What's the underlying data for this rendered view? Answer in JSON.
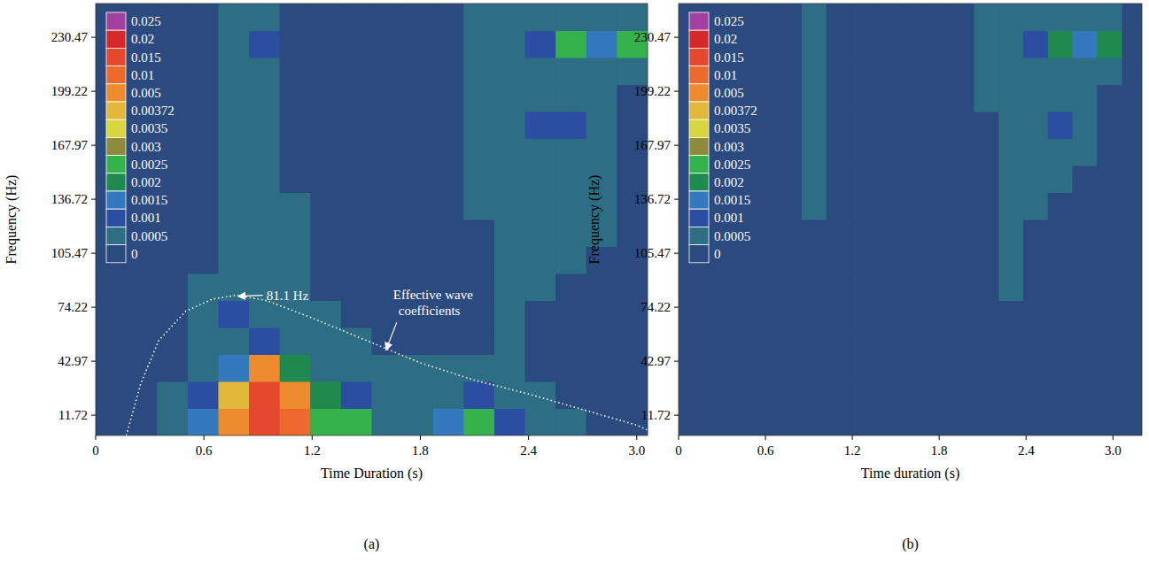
{
  "chart_data": [
    {
      "type": "heatmap",
      "panel": "(a)",
      "x_label": "Time Duration (s)",
      "y_label": "Frequency (Hz)",
      "xlim": [
        0,
        3.06
      ],
      "ylim": [
        0,
        250
      ],
      "xticks": [
        0,
        0.6,
        1.2,
        1.8,
        2.4,
        {
          "value": 3,
          "label": "3.0"
        }
      ],
      "yticks": [
        11.72,
        42.97,
        74.22,
        105.47,
        136.72,
        167.97,
        199.22,
        230.47
      ],
      "x": [
        0,
        0.17,
        0.34,
        0.51,
        0.68,
        0.85,
        1.02,
        1.19,
        1.36,
        1.53,
        1.7,
        1.87,
        2.04,
        2.21,
        2.38,
        2.55,
        2.72,
        2.89,
        3.06
      ],
      "y": [
        0,
        15.625,
        31.25,
        46.875,
        62.5,
        78.125,
        93.75,
        109.375,
        125,
        140.625,
        156.25,
        171.875,
        187.5,
        203.125,
        218.75,
        234.375,
        250
      ],
      "cells": [
        [
          0.0003,
          0.0004,
          0.0006,
          0.0015,
          0.006,
          0.018,
          0.012,
          0.0028,
          0.0026,
          0.0008,
          0.0008,
          0.0015,
          0.0025,
          0.001,
          0.0006,
          0.0005,
          0.0004,
          0.0003
        ],
        [
          0.0002,
          0.0003,
          0.0005,
          0.001,
          0.004,
          0.015,
          0.008,
          0.002,
          0.0012,
          0.0006,
          0.0006,
          0.0008,
          0.0012,
          0.0007,
          0.0005,
          0.0004,
          0.0003,
          0.0002
        ],
        [
          0.0002,
          0.0002,
          0.0004,
          0.0007,
          0.0015,
          0.006,
          0.002,
          0.0008,
          0.0006,
          0.0006,
          0.0005,
          0.0005,
          0.0006,
          0.0006,
          0.0004,
          0.0003,
          0.0002,
          0.0002
        ],
        [
          0.0002,
          0.0002,
          0.0003,
          0.0006,
          0.0008,
          0.0012,
          0.0008,
          0.0006,
          0.0006,
          0.0004,
          0.0003,
          0.0003,
          0.0004,
          0.0006,
          0.0003,
          0.0002,
          0.0002,
          0.0002
        ],
        [
          0.0002,
          0.0002,
          0.0003,
          0.0007,
          0.0012,
          0.0007,
          0.0007,
          0.0005,
          0.0003,
          0.0002,
          0.0002,
          0.0002,
          0.0003,
          0.0006,
          0.0003,
          0.0002,
          0.0002,
          0.0002
        ],
        [
          0.0002,
          0.0002,
          0.0002,
          0.0005,
          0.0007,
          0.0006,
          0.0006,
          0.0003,
          0.0002,
          0.0002,
          0.0002,
          0.0002,
          0.0003,
          0.0006,
          0.0006,
          0.0004,
          0.0003,
          0.0002
        ],
        [
          0.0002,
          0.0002,
          0.0002,
          0.0003,
          0.0006,
          0.0006,
          0.0005,
          0.0003,
          0.0002,
          0.0002,
          0.0002,
          0.0002,
          0.0003,
          0.0007,
          0.0006,
          0.0006,
          0.0004,
          0.0002
        ],
        [
          0.0002,
          0.0002,
          0.0002,
          0.0003,
          0.0006,
          0.0005,
          0.0006,
          0.0003,
          0.0002,
          0.0002,
          0.0002,
          0.0002,
          0.0004,
          0.0007,
          0.0006,
          0.0006,
          0.0005,
          0.0002
        ],
        [
          0.0002,
          0.0002,
          0.0002,
          0.0003,
          0.0005,
          0.0006,
          0.0005,
          0.0002,
          0.0002,
          0.0002,
          0.0002,
          0.0002,
          0.0005,
          0.0008,
          0.0007,
          0.0006,
          0.0006,
          0.0002
        ],
        [
          0.0002,
          0.0002,
          0.0002,
          0.0003,
          0.0006,
          0.0006,
          0.0004,
          0.0002,
          0.0002,
          0.0002,
          0.0002,
          0.0002,
          0.0005,
          0.0008,
          0.0007,
          0.0007,
          0.0006,
          0.0003
        ],
        [
          0.0002,
          0.0002,
          0.0002,
          0.0003,
          0.0006,
          0.0005,
          0.0004,
          0.0002,
          0.0002,
          0.0002,
          0.0002,
          0.0003,
          0.0006,
          0.0009,
          0.0008,
          0.0007,
          0.0006,
          0.0003
        ],
        [
          0.0002,
          0.0002,
          0.0002,
          0.0003,
          0.0005,
          0.0006,
          0.0004,
          0.0002,
          0.0002,
          0.0002,
          0.0002,
          0.0003,
          0.0006,
          0.0008,
          0.0011,
          0.0012,
          0.0007,
          0.0003
        ],
        [
          0.0002,
          0.0002,
          0.0002,
          0.0003,
          0.0006,
          0.0006,
          0.0004,
          0.0002,
          0.0002,
          0.0002,
          0.0002,
          0.0003,
          0.0007,
          0.0009,
          0.0008,
          0.0008,
          0.0007,
          0.0004
        ],
        [
          0.0002,
          0.0002,
          0.0002,
          0.0003,
          0.0006,
          0.0007,
          0.0004,
          0.0002,
          0.0002,
          0.0002,
          0.0002,
          0.0003,
          0.0008,
          0.0009,
          0.0009,
          0.0009,
          0.0008,
          0.0007
        ],
        [
          0.0002,
          0.0002,
          0.0002,
          0.0003,
          0.0006,
          0.0012,
          0.0004,
          0.0002,
          0.0002,
          0.0002,
          0.0002,
          0.0003,
          0.0007,
          0.0009,
          0.0014,
          0.0026,
          0.0015,
          0.0026
        ],
        [
          0.0002,
          0.0002,
          0.0002,
          0.0003,
          0.0005,
          0.0007,
          0.0004,
          0.0002,
          0.0002,
          0.0002,
          0.0002,
          0.0003,
          0.0006,
          0.0008,
          0.0007,
          0.0008,
          0.0007,
          0.0006
        ]
      ],
      "colorbar": {
        "ticks": [
          0,
          0.0005,
          0.001,
          0.0015,
          0.002,
          0.0025,
          0.003,
          0.0035,
          0.00372,
          0.005,
          0.01,
          0.015,
          0.02,
          0.025
        ],
        "colors": [
          "#2b4a7f",
          "#2d6e84",
          "#2c4ea2",
          "#3479bd",
          "#1f8a4e",
          "#36b24c",
          "#8e8c3c",
          "#d8d63c",
          "#e2b83a",
          "#ef8b2f",
          "#ec6a2c",
          "#e5482c",
          "#d6282a",
          "#a2419f"
        ]
      },
      "boundary": {
        "x": [
          0.17,
          0.25,
          0.35,
          0.5,
          0.65,
          0.78,
          0.95,
          1.2,
          1.5,
          1.8,
          2.1,
          2.4,
          2.7,
          3.0,
          3.06
        ],
        "y": [
          0,
          30,
          55,
          72,
          79,
          81.1,
          78,
          68,
          55,
          42,
          32,
          24,
          15,
          6,
          3
        ]
      },
      "annotations": [
        {
          "text": "81.1 Hz",
          "x": 0.78,
          "y": 81.1
        },
        {
          "text": "Effective wave coefficients",
          "x": 1.6,
          "y": 50
        }
      ]
    },
    {
      "type": "heatmap",
      "panel": "(b)",
      "x_label": "Time duration (s)",
      "y_label": "Frequency (Hz)",
      "xlim": [
        0,
        3.2
      ],
      "ylim": [
        0,
        250
      ],
      "xticks": [
        0,
        0.6,
        1.2,
        1.8,
        2.4,
        {
          "value": 3,
          "label": "3.0"
        }
      ],
      "yticks": [
        11.72,
        42.97,
        74.22,
        105.47,
        136.72,
        167.97,
        199.22,
        230.47
      ],
      "x": [
        0,
        0.17,
        0.34,
        0.51,
        0.68,
        0.85,
        1.02,
        1.19,
        1.36,
        1.53,
        1.7,
        1.87,
        2.04,
        2.21,
        2.38,
        2.55,
        2.72,
        2.89,
        3.06
      ],
      "y": [
        0,
        15.625,
        31.25,
        46.875,
        62.5,
        78.125,
        93.75,
        109.375,
        125,
        140.625,
        156.25,
        171.875,
        187.5,
        203.125,
        218.75,
        234.375,
        250
      ],
      "cells": [
        [
          0.0002,
          0.0002,
          0.0002,
          0.0002,
          0.0003,
          0.0004,
          0.0003,
          0.0003,
          0.0002,
          0.0002,
          0.0002,
          0.0002,
          0.0003,
          0.0002,
          0.0002,
          0.0002,
          0.0002,
          0.0002
        ],
        [
          0.0002,
          0.0002,
          0.0002,
          0.0002,
          0.0003,
          0.0003,
          0.0003,
          0.0002,
          0.0002,
          0.0002,
          0.0002,
          0.0002,
          0.0003,
          0.0002,
          0.0002,
          0.0002,
          0.0002,
          0.0002
        ],
        [
          0.0002,
          0.0002,
          0.0002,
          0.0002,
          0.0003,
          0.0003,
          0.0002,
          0.0002,
          0.0002,
          0.0002,
          0.0002,
          0.0002,
          0.0002,
          0.0003,
          0.0002,
          0.0002,
          0.0002,
          0.0002
        ],
        [
          0.0002,
          0.0002,
          0.0002,
          0.0002,
          0.0003,
          0.0003,
          0.0002,
          0.0002,
          0.0002,
          0.0002,
          0.0002,
          0.0002,
          0.0002,
          0.0003,
          0.0002,
          0.0002,
          0.0002,
          0.0002
        ],
        [
          0.0003,
          0.0002,
          0.0002,
          0.0002,
          0.0003,
          0.0003,
          0.0002,
          0.0002,
          0.0002,
          0.0002,
          0.0002,
          0.0002,
          0.0002,
          0.0003,
          0.0002,
          0.0002,
          0.0002,
          0.0002
        ],
        [
          0.0002,
          0.0002,
          0.0002,
          0.0002,
          0.0003,
          0.0004,
          0.0002,
          0.0002,
          0.0002,
          0.0002,
          0.0002,
          0.0002,
          0.0003,
          0.0005,
          0.0003,
          0.0002,
          0.0002,
          0.0002
        ],
        [
          0.0002,
          0.0002,
          0.0002,
          0.0002,
          0.0003,
          0.0004,
          0.0002,
          0.0002,
          0.0002,
          0.0002,
          0.0002,
          0.0002,
          0.0003,
          0.0005,
          0.0004,
          0.0003,
          0.0002,
          0.0002
        ],
        [
          0.0002,
          0.0002,
          0.0002,
          0.0002,
          0.0003,
          0.0004,
          0.0002,
          0.0002,
          0.0002,
          0.0002,
          0.0002,
          0.0002,
          0.0003,
          0.0006,
          0.0004,
          0.0004,
          0.0003,
          0.0002
        ],
        [
          0.0002,
          0.0002,
          0.0002,
          0.0002,
          0.0003,
          0.0005,
          0.0002,
          0.0002,
          0.0002,
          0.0002,
          0.0002,
          0.0002,
          0.0003,
          0.0006,
          0.0005,
          0.0004,
          0.0003,
          0.0002
        ],
        [
          0.0002,
          0.0002,
          0.0002,
          0.0002,
          0.0003,
          0.0005,
          0.0002,
          0.0002,
          0.0002,
          0.0002,
          0.0002,
          0.0002,
          0.0004,
          0.0007,
          0.0006,
          0.0005,
          0.0004,
          0.0002
        ],
        [
          0.0002,
          0.0002,
          0.0002,
          0.0002,
          0.0003,
          0.0005,
          0.0002,
          0.0002,
          0.0002,
          0.0002,
          0.0002,
          0.0002,
          0.0004,
          0.0007,
          0.0006,
          0.0006,
          0.0005,
          0.0002
        ],
        [
          0.0002,
          0.0002,
          0.0002,
          0.0002,
          0.0003,
          0.0006,
          0.0003,
          0.0002,
          0.0002,
          0.0002,
          0.0002,
          0.0002,
          0.0004,
          0.0008,
          0.0006,
          0.0011,
          0.0006,
          0.0003
        ],
        [
          0.0002,
          0.0002,
          0.0002,
          0.0002,
          0.0004,
          0.0007,
          0.0003,
          0.0002,
          0.0002,
          0.0002,
          0.0002,
          0.0002,
          0.0005,
          0.0008,
          0.0007,
          0.0007,
          0.0006,
          0.0003
        ],
        [
          0.0002,
          0.0002,
          0.0002,
          0.0002,
          0.0004,
          0.0008,
          0.0003,
          0.0002,
          0.0002,
          0.0002,
          0.0002,
          0.0002,
          0.0006,
          0.0009,
          0.0008,
          0.0008,
          0.0007,
          0.0006
        ],
        [
          0.0002,
          0.0002,
          0.0002,
          0.0002,
          0.0004,
          0.0009,
          0.0003,
          0.0002,
          0.0002,
          0.0002,
          0.0002,
          0.0002,
          0.0005,
          0.0008,
          0.0012,
          0.0022,
          0.0015,
          0.0024
        ],
        [
          0.0002,
          0.0002,
          0.0002,
          0.0002,
          0.0003,
          0.0006,
          0.0003,
          0.0002,
          0.0002,
          0.0002,
          0.0002,
          0.0002,
          0.0005,
          0.0008,
          0.0007,
          0.0008,
          0.0007,
          0.0006
        ]
      ],
      "colorbar": {
        "ticks": [
          0,
          0.0005,
          0.001,
          0.0015,
          0.002,
          0.0025,
          0.003,
          0.0035,
          0.00372,
          0.005,
          0.01,
          0.015,
          0.02,
          0.025
        ],
        "colors": [
          "#2b4a7f",
          "#2d6e84",
          "#2c4ea2",
          "#3479bd",
          "#1f8a4e",
          "#36b24c",
          "#8e8c3c",
          "#d8d63c",
          "#e2b83a",
          "#ef8b2f",
          "#ec6a2c",
          "#e5482c",
          "#d6282a",
          "#a2419f"
        ]
      }
    }
  ]
}
